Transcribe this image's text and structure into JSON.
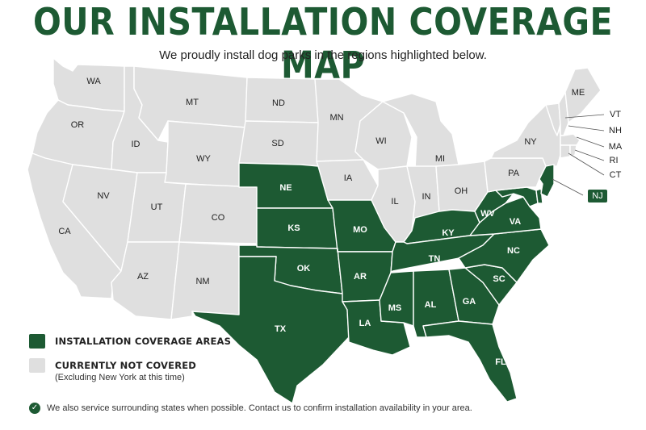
{
  "title": "OUR INSTALLATION COVERAGE MAP",
  "subtitle": "We proudly install dog parks in the regions highlighted below.",
  "colors": {
    "covered": "#1d5a33",
    "not_covered": "#dfdfdf",
    "border": "#ffffff",
    "label_dark": "#222222",
    "label_light": "#ffffff"
  },
  "states": {
    "WA": "WA",
    "OR": "OR",
    "CA": "CA",
    "ID": "ID",
    "NV": "NV",
    "MT": "MT",
    "WY": "WY",
    "UT": "UT",
    "AZ": "AZ",
    "CO": "CO",
    "NM": "NM",
    "ND": "ND",
    "SD": "SD",
    "NE": "NE",
    "KS": "KS",
    "OK": "OK",
    "TX": "TX",
    "MN": "MN",
    "IA": "IA",
    "MO": "MO",
    "AR": "AR",
    "LA": "LA",
    "WI": "WI",
    "IL": "IL",
    "MI": "MI",
    "IN": "IN",
    "OH": "OH",
    "KY": "KY",
    "TN": "TN",
    "MS": "MS",
    "AL": "AL",
    "GA": "GA",
    "FL": "FL",
    "SC": "SC",
    "NC": "NC",
    "VA": "VA",
    "WV": "WV",
    "PA": "PA",
    "NY": "NY",
    "NJ": "NJ",
    "ME": "ME",
    "VT": "VT",
    "NH": "NH",
    "MA": "MA",
    "RI": "RI",
    "CT": "CT"
  },
  "covered_states": [
    "NE",
    "KS",
    "OK",
    "TX",
    "MO",
    "AR",
    "LA",
    "MS",
    "AL",
    "GA",
    "FL",
    "SC",
    "NC",
    "TN",
    "KY",
    "WV",
    "VA",
    "MD",
    "DE",
    "NJ"
  ],
  "legend": {
    "covered_label": "INSTALLATION COVERAGE AREAS",
    "not_covered_label": "CURRENTLY NOT COVERED",
    "not_covered_note": "(Excluding New York at this time)"
  },
  "footer": {
    "icon": "check-circle-icon",
    "text": "We also service surrounding states when possible. Contact us to confirm installation availability in your area."
  }
}
